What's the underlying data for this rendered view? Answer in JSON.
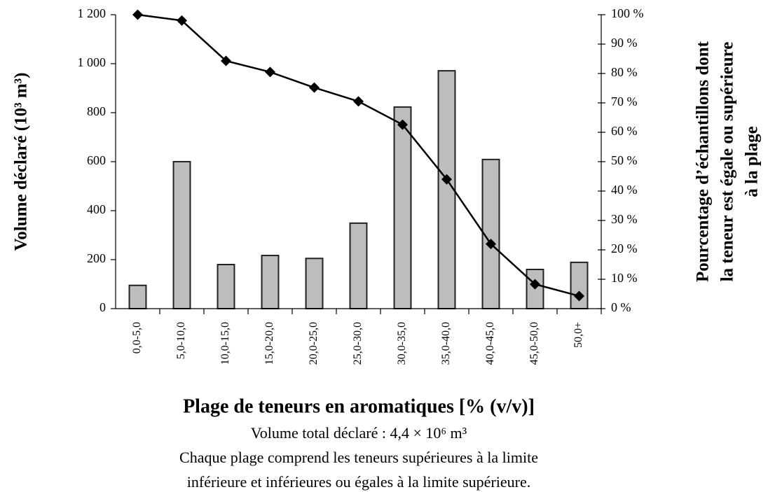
{
  "chart_data": {
    "type": "bar_line",
    "ylabel": "Volume déclaré (10³ m³)",
    "y2label": [
      "Pourcentage d’échantillons dont",
      "la teneur est égale ou supérieure",
      "à la plage"
    ],
    "xlabel": "Plage de teneurs en aromatiques [% (v/v)]",
    "notes": [
      "Volume total déclaré : 4,4 × 10⁶ m³",
      "Chaque plage comprend les teneurs supérieures à la limite",
      "inférieure et inférieures ou égales à la limite supérieure."
    ],
    "categories": [
      "0,0-5,0",
      "5,0-10,0",
      "10,0-15,0",
      "15,0-20,0",
      "20,0-25,0",
      "25,0-30,0",
      "30,0-35,0",
      "35,0-40,0",
      "40,0-45,0",
      "45,0-50,0",
      "50,0+"
    ],
    "series": [
      {
        "type": "bar",
        "color": "#bdbdbd",
        "values": [
          95,
          600,
          180,
          217,
          205,
          349,
          823,
          971,
          609,
          160,
          189
        ]
      },
      {
        "type": "line",
        "axis": "y2",
        "color": "#000000",
        "values": [
          100,
          98,
          84.3,
          80.5,
          75.2,
          70.5,
          62.6,
          44,
          22,
          8.3,
          4.3
        ]
      }
    ],
    "ylim": [
      0,
      1200
    ],
    "yticks": [
      0,
      200,
      400,
      600,
      800,
      {
        "value": 1000,
        "label": "1 000"
      },
      {
        "value": 1200,
        "label": "1 200"
      }
    ],
    "y2lim": [
      0,
      100
    ],
    "y2ticks": [
      {
        "value": 0,
        "label": "0 %"
      },
      {
        "value": 10,
        "label": "10 %"
      },
      {
        "value": 20,
        "label": "20 %"
      },
      {
        "value": 30,
        "label": "30 %"
      },
      {
        "value": 40,
        "label": "40 %"
      },
      {
        "value": 50,
        "label": "50 %"
      },
      {
        "value": 60,
        "label": "60 %"
      },
      {
        "value": 70,
        "label": "70 %"
      },
      {
        "value": 80,
        "label": "80 %"
      },
      {
        "value": 90,
        "label": "90 %"
      },
      {
        "value": 100,
        "label": "100 %"
      }
    ]
  }
}
